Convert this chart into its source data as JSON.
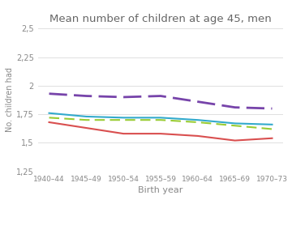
{
  "title": "Mean number of children at age 45, men",
  "xlabel": "Birth year",
  "ylabel": "No. children had",
  "x_labels": [
    "1940–44",
    "1945–49",
    "1950–54",
    "1955–59",
    "1960–64",
    "1965–69",
    "1970–73"
  ],
  "x_values": [
    0,
    1,
    2,
    3,
    4,
    5,
    6
  ],
  "series": {
    "Basic ed.": {
      "values": [
        1.68,
        1.63,
        1.58,
        1.58,
        1.56,
        1.52,
        1.54
      ],
      "color": "#d94f4f",
      "linestyle": "solid",
      "linewidth": 1.5,
      "dash": null
    },
    "Secondary ed.": {
      "values": [
        1.72,
        1.7,
        1.7,
        1.7,
        1.68,
        1.65,
        1.62
      ],
      "color": "#99cc33",
      "linestyle": "dashed",
      "linewidth": 1.5,
      "dash": [
        6,
        3
      ]
    },
    "Tertiary ed.": {
      "values": [
        1.93,
        1.91,
        1.9,
        1.91,
        1.86,
        1.81,
        1.8
      ],
      "color": "#7744aa",
      "linestyle": "dashed",
      "linewidth": 2.0,
      "dash": [
        8,
        3
      ]
    },
    "All": {
      "values": [
        1.76,
        1.73,
        1.72,
        1.72,
        1.7,
        1.67,
        1.66
      ],
      "color": "#33aacc",
      "linestyle": "solid",
      "linewidth": 1.5,
      "dash": null
    }
  },
  "ylim": [
    1.25,
    2.5
  ],
  "yticks": [
    1.25,
    1.5,
    1.75,
    2.0,
    2.25,
    2.5
  ],
  "ytick_labels": [
    "1,25",
    "1,5",
    "1,75",
    "2",
    "2,25",
    "2,5"
  ],
  "background_color": "#ffffff",
  "grid_color": "#e0e0e0"
}
